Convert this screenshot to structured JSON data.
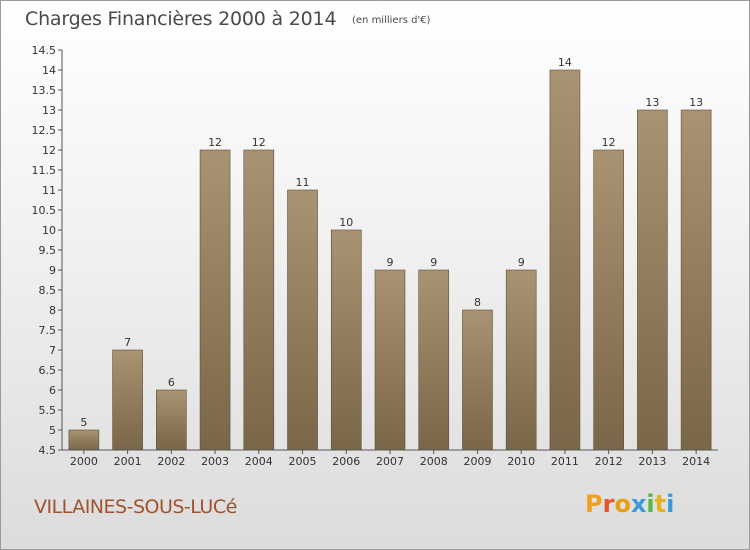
{
  "header": {
    "title": "Charges Financières 2000 à 2014",
    "subtitle": "(en milliers d'€)"
  },
  "footer": {
    "commune": "VILLAINES-SOUS-LUCé",
    "logo_letters": [
      "P",
      "r",
      "o",
      "x",
      "i",
      "t",
      "i"
    ],
    "logo_colors": [
      "#f0a020",
      "#e8542a",
      "#e8a010",
      "#3a9ad9",
      "#58b548",
      "#e3b21a",
      "#3a9ad9"
    ]
  },
  "chart_data": {
    "type": "bar",
    "title": "Charges Financières 2000 à 2014",
    "subtitle": "(en milliers d'€)",
    "categories": [
      "2000",
      "2001",
      "2002",
      "2003",
      "2004",
      "2005",
      "2006",
      "2007",
      "2008",
      "2009",
      "2010",
      "2011",
      "2012",
      "2013",
      "2014"
    ],
    "values": [
      5,
      7,
      6,
      12,
      12,
      11,
      10,
      9,
      9,
      8,
      9,
      14,
      12,
      13,
      13
    ],
    "ylim": [
      4.5,
      14.5
    ],
    "yticks": [
      "4.5",
      "5",
      "5.5",
      "6",
      "6.5",
      "7",
      "7.5",
      "8",
      "8.5",
      "9",
      "9.5",
      "10",
      "10.5",
      "11",
      "11.5",
      "12",
      "12.5",
      "13",
      "13.5",
      "14",
      "14.5"
    ],
    "grid": false,
    "bar_color_top": "#a89372",
    "bar_color_bottom": "#7a6648"
  }
}
